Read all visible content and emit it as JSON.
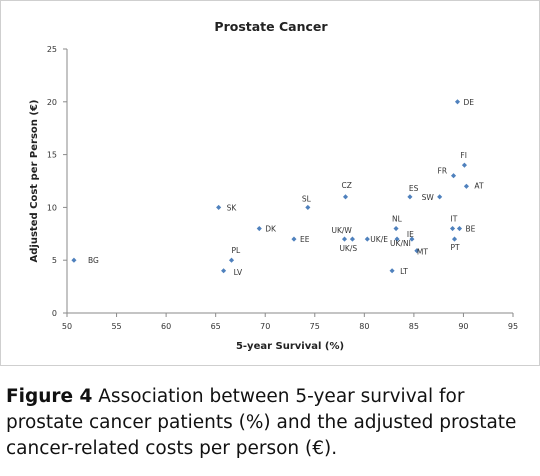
{
  "chart_data": {
    "type": "scatter",
    "title": "Prostate Cancer",
    "xlabel": "5-year Survival (%)",
    "ylabel": "Adjusted Cost per Person (€)",
    "xlim": [
      50,
      95
    ],
    "ylim": [
      0,
      25
    ],
    "xticks": [
      50,
      55,
      60,
      65,
      70,
      75,
      80,
      85,
      90,
      95
    ],
    "yticks": [
      0,
      5,
      10,
      15,
      20,
      25
    ],
    "grid": false,
    "marker_color": "#4f81bd",
    "points": [
      {
        "label": "BG",
        "x": 50.7,
        "y": 5.0
      },
      {
        "label": "LV",
        "x": 65.8,
        "y": 4.0
      },
      {
        "label": "PL",
        "x": 66.6,
        "y": 5.0
      },
      {
        "label": "SK",
        "x": 65.3,
        "y": 10.0
      },
      {
        "label": "DK",
        "x": 69.4,
        "y": 8.0
      },
      {
        "label": "EE",
        "x": 72.9,
        "y": 7.0
      },
      {
        "label": "SL",
        "x": 74.3,
        "y": 10.0
      },
      {
        "label": "CZ",
        "x": 78.1,
        "y": 11.0
      },
      {
        "label": "UK/W",
        "x": 78.0,
        "y": 7.0
      },
      {
        "label": "UK/S",
        "x": 78.8,
        "y": 7.0
      },
      {
        "label": "UK/E",
        "x": 80.3,
        "y": 7.0
      },
      {
        "label": "NL",
        "x": 83.2,
        "y": 8.0
      },
      {
        "label": "UK/NI",
        "x": 83.3,
        "y": 7.0
      },
      {
        "label": "IE",
        "x": 84.8,
        "y": 7.0
      },
      {
        "label": "ES",
        "x": 84.6,
        "y": 11.0
      },
      {
        "label": "MT",
        "x": 85.3,
        "y": 5.9
      },
      {
        "label": "LT",
        "x": 82.8,
        "y": 4.0
      },
      {
        "label": "SW",
        "x": 87.6,
        "y": 11.0
      },
      {
        "label": "IT",
        "x": 88.9,
        "y": 8.0
      },
      {
        "label": "BE",
        "x": 89.6,
        "y": 8.0
      },
      {
        "label": "PT",
        "x": 89.1,
        "y": 7.0
      },
      {
        "label": "FR",
        "x": 89.0,
        "y": 13.0
      },
      {
        "label": "AT",
        "x": 90.3,
        "y": 12.0
      },
      {
        "label": "FI",
        "x": 90.1,
        "y": 14.0
      },
      {
        "label": "DE",
        "x": 89.4,
        "y": 20.0
      }
    ]
  },
  "caption": {
    "label": "Figure 4",
    "text": " Association between 5-year survival for prostate cancer patients (%) and the adjusted prostate cancer-related costs per person (€)."
  }
}
